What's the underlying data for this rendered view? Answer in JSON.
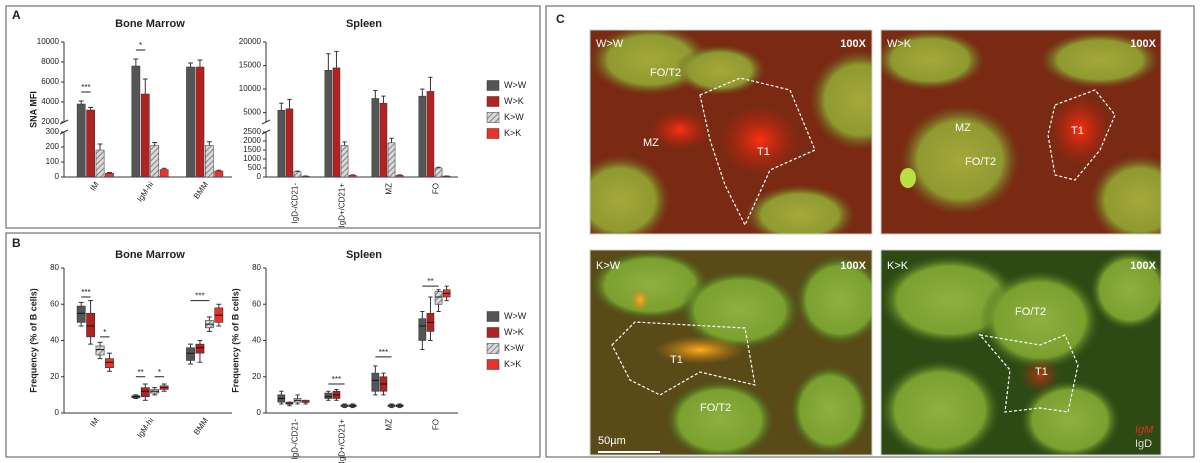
{
  "panel_labels": [
    "A",
    "B",
    "C"
  ],
  "chart_data": [
    {
      "type": "bar",
      "title": "Bone Marrow",
      "y_label": "SNA MFI",
      "categories": [
        "IM",
        "IgM-hi",
        "BMM"
      ],
      "series": [
        {
          "name": "W>W",
          "color": "#555555",
          "values": [
            3800,
            7600,
            7500
          ],
          "errors": [
            300,
            700,
            400
          ]
        },
        {
          "name": "W>K",
          "color": "#b22222",
          "values": [
            3200,
            4800,
            7500
          ],
          "errors": [
            250,
            1500,
            700
          ]
        },
        {
          "name": "K>W",
          "color": "#d9d9d9",
          "pattern": "hatch",
          "values": [
            180,
            210,
            210
          ],
          "errors": [
            40,
            20,
            25
          ]
        },
        {
          "name": "K>K",
          "color": "#e8332a",
          "values": [
            25,
            50,
            40
          ],
          "errors": [
            5,
            8,
            5
          ]
        }
      ],
      "ylim": [
        0,
        300
      ],
      "yticks": [
        0,
        100,
        200,
        300
      ],
      "ylim_upper": [
        2000,
        10000
      ],
      "yticks_upper": [
        2000,
        4000,
        6000,
        8000,
        10000
      ],
      "annotations": [
        {
          "text": "***",
          "category": "IM",
          "series": [
            "W>W",
            "W>K"
          ],
          "y": 5000
        },
        {
          "text": "*",
          "category": "IgM-hi",
          "series": [
            "W>W",
            "W>K"
          ],
          "y": 9200
        }
      ]
    },
    {
      "type": "bar",
      "title": "Spleen",
      "categories": [
        "IgD-/CD21-",
        "IgD+/CD21+",
        "MZ",
        "FO"
      ],
      "series": [
        {
          "name": "W>W",
          "color": "#555555",
          "values": [
            5500,
            14000,
            8000,
            8500
          ],
          "errors": [
            1500,
            3500,
            1700,
            1500
          ]
        },
        {
          "name": "W>K",
          "color": "#b22222",
          "values": [
            5800,
            14500,
            7000,
            9500
          ],
          "errors": [
            2000,
            3500,
            1500,
            3000
          ]
        },
        {
          "name": "K>W",
          "color": "#d9d9d9",
          "pattern": "hatch",
          "values": [
            300,
            1750,
            1900,
            500
          ],
          "errors": [
            30,
            200,
            250,
            40
          ]
        },
        {
          "name": "K>K",
          "color": "#e8332a",
          "values": [
            50,
            100,
            100,
            50
          ],
          "errors": [
            5,
            20,
            20,
            5
          ]
        }
      ],
      "ylim": [
        0,
        2500
      ],
      "yticks": [
        0,
        500,
        1000,
        1500,
        2000,
        2500
      ],
      "ylim_upper": [
        3000,
        20000
      ],
      "yticks_upper": [
        5000,
        10000,
        15000,
        20000
      ],
      "legend": "right"
    },
    {
      "type": "box",
      "title": "Bone Marrow",
      "y_label": "Frequency (% of B cells)",
      "categories": [
        "IM",
        "IgM-hi",
        "BMM"
      ],
      "series": [
        {
          "name": "W>W",
          "color": "#555555",
          "values": [
            {
              "min": 48,
              "q1": 50,
              "median": 55,
              "q3": 59,
              "max": 61
            },
            {
              "min": 8,
              "q1": 8.5,
              "median": 9,
              "q3": 9.5,
              "max": 10
            },
            {
              "min": 27,
              "q1": 29,
              "median": 33,
              "q3": 36,
              "max": 38
            }
          ]
        },
        {
          "name": "W>K",
          "color": "#b22222",
          "values": [
            {
              "min": 38,
              "q1": 42,
              "median": 48,
              "q3": 55,
              "max": 62
            },
            {
              "min": 7,
              "q1": 9,
              "median": 12,
              "q3": 14,
              "max": 16
            },
            {
              "min": 28,
              "q1": 33,
              "median": 36,
              "q3": 38,
              "max": 40
            }
          ]
        },
        {
          "name": "K>W",
          "color": "#d9d9d9",
          "pattern": "hatch",
          "values": [
            {
              "min": 30,
              "q1": 32,
              "median": 35,
              "q3": 37,
              "max": 39
            },
            {
              "min": 10,
              "q1": 11,
              "median": 12,
              "q3": 13,
              "max": 14
            },
            {
              "min": 45,
              "q1": 47,
              "median": 49,
              "q3": 51,
              "max": 53
            }
          ]
        },
        {
          "name": "K>K",
          "color": "#e8332a",
          "values": [
            {
              "min": 23,
              "q1": 25,
              "median": 28,
              "q3": 30,
              "max": 33
            },
            {
              "min": 12,
              "q1": 13,
              "median": 14,
              "q3": 15,
              "max": 16
            },
            {
              "min": 48,
              "q1": 50,
              "median": 54,
              "q3": 58,
              "max": 60
            }
          ]
        }
      ],
      "ylim": [
        0,
        80
      ],
      "yticks": [
        0,
        20,
        40,
        60,
        80
      ],
      "annotations": [
        {
          "text": "***",
          "category": "IM",
          "series": [
            "W>W",
            "W>K"
          ],
          "y": 64
        },
        {
          "text": "*",
          "category": "IM",
          "series": [
            "K>W",
            "K>K"
          ],
          "y": 42
        },
        {
          "text": "**",
          "category": "IgM-hi",
          "series": [
            "W>W",
            "W>K"
          ],
          "y": 20
        },
        {
          "text": "*",
          "category": "IgM-hi",
          "series": [
            "K>W",
            "K>K"
          ],
          "y": 20
        },
        {
          "text": "***",
          "category": "BMM",
          "series": [
            "W>W",
            "K>W"
          ],
          "y": 62
        }
      ]
    },
    {
      "type": "box",
      "title": "Spleen",
      "y_label": "Frequency (% of B cells)",
      "categories": [
        "IgD-/CD21-",
        "IgD+/CD21+",
        "MZ",
        "FO"
      ],
      "series": [
        {
          "name": "W>W",
          "color": "#555555",
          "values": [
            {
              "min": 5,
              "q1": 6,
              "median": 8,
              "q3": 10,
              "max": 12
            },
            {
              "min": 7,
              "q1": 8,
              "median": 9,
              "q3": 11,
              "max": 12
            },
            {
              "min": 10,
              "q1": 12,
              "median": 18,
              "q3": 22,
              "max": 26
            },
            {
              "min": 35,
              "q1": 40,
              "median": 48,
              "q3": 52,
              "max": 56
            }
          ]
        },
        {
          "name": "W>K",
          "color": "#b22222",
          "values": [
            {
              "min": 4,
              "q1": 5,
              "median": 5,
              "q3": 6,
              "max": 6
            },
            {
              "min": 7,
              "q1": 8,
              "median": 10,
              "q3": 12,
              "max": 13
            },
            {
              "min": 10,
              "q1": 12,
              "median": 16,
              "q3": 20,
              "max": 22
            },
            {
              "min": 40,
              "q1": 45,
              "median": 50,
              "q3": 55,
              "max": 64
            }
          ]
        },
        {
          "name": "K>W",
          "color": "#d9d9d9",
          "pattern": "hatch",
          "values": [
            {
              "min": 5,
              "q1": 6,
              "median": 7,
              "q3": 8,
              "max": 10
            },
            {
              "min": 3,
              "q1": 3.5,
              "median": 4,
              "q3": 4.5,
              "max": 5
            },
            {
              "min": 3,
              "q1": 3.5,
              "median": 4,
              "q3": 4.5,
              "max": 5
            },
            {
              "min": 56,
              "q1": 60,
              "median": 64,
              "q3": 67,
              "max": 68
            }
          ]
        },
        {
          "name": "K>K",
          "color": "#e8332a",
          "values": [
            {
              "min": 5,
              "q1": 6,
              "median": 6,
              "q3": 7,
              "max": 7
            },
            {
              "min": 3,
              "q1": 3.5,
              "median": 4,
              "q3": 4.5,
              "max": 5
            },
            {
              "min": 3,
              "q1": 3.5,
              "median": 4,
              "q3": 4.5,
              "max": 5
            },
            {
              "min": 62,
              "q1": 64,
              "median": 66,
              "q3": 68,
              "max": 70
            }
          ]
        }
      ],
      "ylim": [
        0,
        80
      ],
      "yticks": [
        0,
        20,
        40,
        60,
        80
      ],
      "legend": "right",
      "annotations": [
        {
          "text": "***",
          "category": "IgD+/CD21+",
          "series": [
            "W>W",
            "K>W"
          ],
          "y": 16
        },
        {
          "text": "***",
          "category": "MZ",
          "series": [
            "W>W",
            "K>W"
          ],
          "y": 31
        },
        {
          "text": "**",
          "category": "FO",
          "series": [
            "W>W",
            "K>W"
          ],
          "y": 70
        }
      ]
    }
  ],
  "micrographs": {
    "panels": [
      {
        "group": "W>W",
        "magnification": "100X",
        "regions": [
          "FO/T2",
          "MZ",
          "T1"
        ]
      },
      {
        "group": "W>K",
        "magnification": "100X",
        "regions": [
          "MZ",
          "T1",
          "FO/T2"
        ]
      },
      {
        "group": "K>W",
        "magnification": "100X",
        "regions": [
          "T1",
          "FO/T2"
        ]
      },
      {
        "group": "K>K",
        "magnification": "100X",
        "regions": [
          "FO/T2",
          "T1"
        ]
      }
    ],
    "scale_bar": "50µm",
    "stains": [
      "IgM",
      "IgD"
    ]
  }
}
